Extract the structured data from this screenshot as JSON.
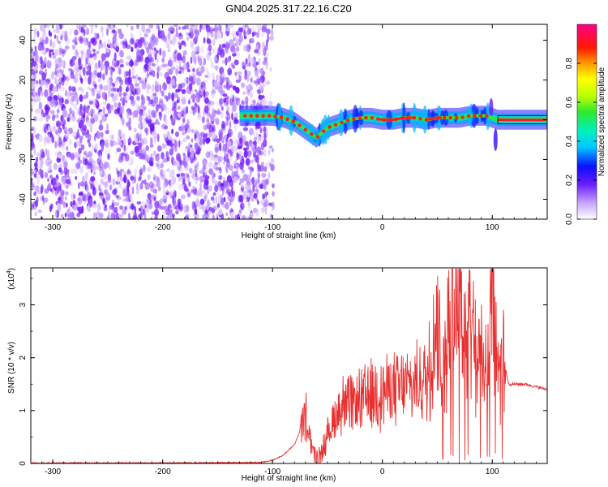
{
  "title": "GN04.2025.317.22.16.C20",
  "chart_data": [
    {
      "type": "heatmap",
      "title": "GN04.2025.317.22.16.C20",
      "xlabel": "Height of straight line (km)",
      "ylabel": "Frequency (Hz)",
      "xlim": [
        -320,
        150
      ],
      "ylim": [
        -50,
        48
      ],
      "xticks": [
        -300,
        -200,
        -100,
        0,
        100
      ],
      "yticks": [
        -40,
        -20,
        0,
        20,
        40
      ],
      "noise_region_x": [
        -320,
        -105
      ],
      "ridge": {
        "x": [
          -130,
          -120,
          -110,
          -100,
          -90,
          -80,
          -70,
          -60,
          -50,
          -40,
          -30,
          -20,
          -10,
          0,
          10,
          20,
          30,
          40,
          50,
          60,
          70,
          80,
          90,
          95,
          100,
          105,
          110,
          120,
          130,
          150
        ],
        "freq": [
          2,
          2,
          2,
          2,
          1,
          -1,
          -5,
          -9,
          -4,
          -2,
          0,
          1,
          1,
          0,
          0,
          1,
          1,
          0,
          1,
          1,
          1,
          2,
          2,
          2,
          1,
          0,
          0,
          0,
          0,
          0
        ]
      },
      "colorbar": {
        "label": "Normalized spectral amplitude",
        "range": [
          0,
          1
        ],
        "ticks": [
          0.0,
          0.2,
          0.4,
          0.6,
          0.8
        ]
      }
    },
    {
      "type": "line",
      "xlabel": "Height of straight line (km)",
      "ylabel": "SNR (10 * v/v)",
      "yscale_label": "(x10",
      "yscale_exp": "4",
      "yscale_close": ")",
      "xlim": [
        -320,
        150
      ],
      "ylim": [
        0,
        3.7
      ],
      "xticks": [
        -300,
        -200,
        -100,
        0,
        100
      ],
      "yticks": [
        0,
        1,
        2,
        3
      ],
      "series": [
        {
          "name": "SNR",
          "color": "#e83030",
          "x": [
            -320,
            -200,
            -110,
            -100,
            -90,
            -80,
            -75,
            -70,
            -65,
            -60,
            -55,
            -50,
            -45,
            -40,
            -35,
            -30,
            -25,
            -20,
            -10,
            0,
            10,
            20,
            30,
            40,
            45,
            50,
            55,
            60,
            65,
            70,
            75,
            80,
            85,
            90,
            95,
            100,
            105,
            110,
            115,
            130,
            150
          ],
          "values": [
            0.0,
            0.0,
            0.01,
            0.05,
            0.15,
            0.35,
            0.6,
            0.9,
            0.35,
            0.1,
            0.25,
            0.5,
            0.8,
            1.0,
            1.15,
            1.1,
            1.1,
            1.2,
            1.3,
            1.35,
            1.4,
            1.45,
            1.5,
            1.6,
            2.3,
            2.8,
            1.6,
            2.5,
            3.4,
            3.6,
            2.4,
            3.0,
            2.2,
            1.8,
            2.0,
            3.6,
            1.5,
            2.0,
            1.5,
            1.5,
            1.4
          ]
        }
      ]
    }
  ]
}
